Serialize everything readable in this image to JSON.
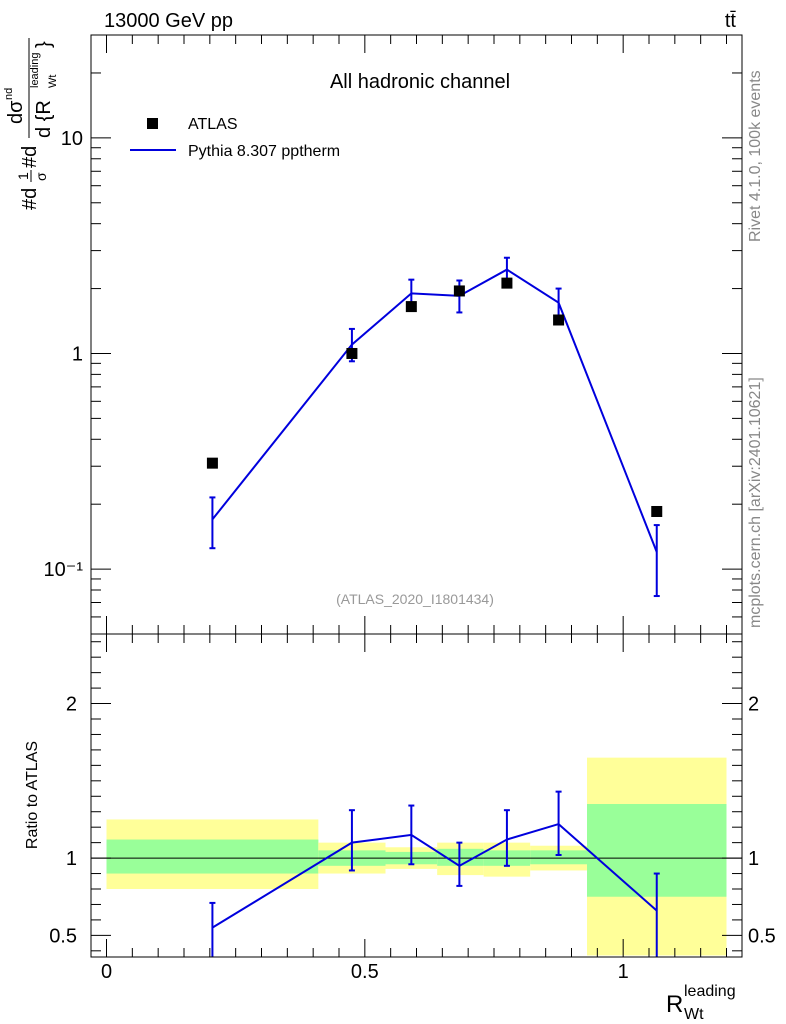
{
  "header": {
    "energy_label": "13000 GeV pp",
    "process_label": "tt̄"
  },
  "side_text": {
    "rivet": "Rivet 4.1.0,  100k events",
    "source": "mcplots.cern.ch [arXiv:2401.10621]"
  },
  "colors": {
    "data_marker": "#000000",
    "mc_line": "#0000dd",
    "band_inner": "#99ff99",
    "band_outer": "#ffff99",
    "side_text": "#888888",
    "analysis_tag": "#999999"
  },
  "chart_data": {
    "type": "line",
    "title": "All hadronic channel",
    "analysis_tag": "(ATLAS_2020_I1801434)",
    "ylabel": "#d₁/σ#d dσ / d {R_Wt^leading}",
    "ylabel_parts": {
      "prefix": "#d",
      "frac1_num": "1",
      "frac1_den": "σ",
      "mid": "#d",
      "frac2_num": "dσ",
      "frac2_num_sup": "nd",
      "frac2_den": "d {R",
      "frac2_den_sup": "leading",
      "frac2_den_sub": "Wt",
      "frac2_den_close": "}"
    },
    "xlabel_main": "R",
    "xlabel_sup": "leading",
    "xlabel_sub": "Wt",
    "yscale": "log",
    "ylim": [
      0.05,
      30
    ],
    "xlim": [
      -0.03,
      1.23
    ],
    "y_tick_labels": [
      "10⁻¹",
      "1",
      "10"
    ],
    "x_tick_labels": [
      "0",
      "0.5",
      "1"
    ],
    "legend": {
      "position": "top-left",
      "entries": [
        {
          "label": "ATLAS",
          "style": "marker"
        },
        {
          "label": "Pythia 8.307 pptherm",
          "style": "line"
        }
      ]
    },
    "bins": [
      {
        "lo": 0.0,
        "hi": 0.41,
        "x": 0.205
      },
      {
        "lo": 0.41,
        "hi": 0.54,
        "x": 0.475
      },
      {
        "lo": 0.54,
        "hi": 0.64,
        "x": 0.59
      },
      {
        "lo": 0.64,
        "hi": 0.73,
        "x": 0.683
      },
      {
        "lo": 0.73,
        "hi": 0.82,
        "x": 0.775
      },
      {
        "lo": 0.82,
        "hi": 0.93,
        "x": 0.875
      },
      {
        "lo": 0.93,
        "hi": 1.2,
        "x": 1.065
      }
    ],
    "series": [
      {
        "name": "ATLAS",
        "values": [
          0.31,
          1.0,
          1.65,
          1.95,
          2.12,
          1.43,
          0.185
        ]
      },
      {
        "name": "Pythia 8.307 pptherm",
        "values": [
          0.17,
          1.1,
          1.9,
          1.85,
          2.45,
          1.72,
          0.12
        ],
        "err_lo": [
          0.125,
          0.92,
          1.6,
          1.55,
          2.15,
          1.45,
          0.075
        ],
        "err_hi": [
          0.215,
          1.3,
          2.2,
          2.18,
          2.78,
          2.0,
          0.16
        ]
      }
    ],
    "ratio": {
      "ylabel": "Ratio to ATLAS",
      "ylim": [
        0.36,
        2.45
      ],
      "y_tick_labels": [
        "0.5",
        "1",
        "2"
      ],
      "y_ticks": [
        0.5,
        1,
        2
      ],
      "values": [
        0.55,
        1.1,
        1.15,
        0.95,
        1.12,
        1.22,
        0.66
      ],
      "err_lo": [
        0.36,
        0.92,
        0.96,
        0.82,
        0.95,
        1.02,
        0.36
      ],
      "err_hi": [
        0.71,
        1.31,
        1.34,
        1.1,
        1.31,
        1.43,
        0.9
      ],
      "band_inner": [
        [
          0.9,
          1.12
        ],
        [
          0.95,
          1.05
        ],
        [
          0.96,
          1.04
        ],
        [
          0.95,
          1.06
        ],
        [
          0.95,
          1.05
        ],
        [
          0.96,
          1.05
        ],
        [
          0.75,
          1.35
        ]
      ],
      "band_outer": [
        [
          0.8,
          1.25
        ],
        [
          0.9,
          1.1
        ],
        [
          0.93,
          1.07
        ],
        [
          0.89,
          1.1
        ],
        [
          0.88,
          1.1
        ],
        [
          0.92,
          1.08
        ],
        [
          0.37,
          1.65
        ]
      ]
    }
  }
}
